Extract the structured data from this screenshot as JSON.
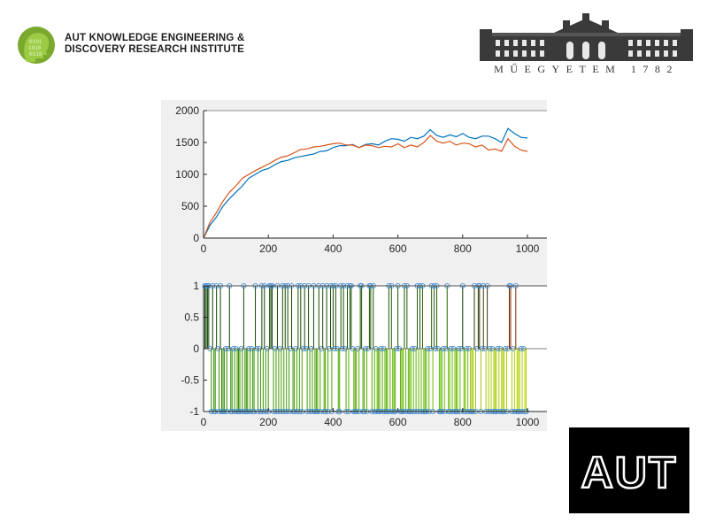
{
  "header": {
    "institute_line1": "AUT KNOWLEDGE ENGINEERING &",
    "institute_line2": "DISCOVERY RESEARCH INSTITUTE",
    "university_caption": "MŰEGYETEM 1782",
    "institute_logo_icon": "brain-head-icon",
    "university_logo_icon": "building-icon"
  },
  "footer": {
    "aut_logo_text": "AUT"
  },
  "colors": {
    "series_blue": "#0072bd",
    "series_orange": "#d95319",
    "marker_blue": "#4a90d9",
    "stem_dark_green": "#0a3d00",
    "stem_bright_green": "#7ccc00",
    "stem_brown": "#8b2a00"
  },
  "chart_data": [
    {
      "type": "line",
      "xlim": [
        0,
        1000
      ],
      "ylim": [
        0,
        2000
      ],
      "x_ticks": [
        "0",
        "200",
        "400",
        "600",
        "800",
        "1000"
      ],
      "y_ticks": [
        "0",
        "500",
        "1000",
        "1500",
        "2000"
      ],
      "grid": false,
      "series": [
        {
          "color": "#0072bd",
          "points": [
            [
              0,
              0
            ],
            [
              20,
              200
            ],
            [
              40,
              330
            ],
            [
              60,
              500
            ],
            [
              80,
              620
            ],
            [
              100,
              720
            ],
            [
              120,
              820
            ],
            [
              140,
              940
            ],
            [
              160,
              1000
            ],
            [
              180,
              1060
            ],
            [
              200,
              1090
            ],
            [
              220,
              1150
            ],
            [
              240,
              1200
            ],
            [
              260,
              1220
            ],
            [
              280,
              1260
            ],
            [
              300,
              1280
            ],
            [
              320,
              1300
            ],
            [
              340,
              1320
            ],
            [
              360,
              1360
            ],
            [
              380,
              1370
            ],
            [
              400,
              1420
            ],
            [
              420,
              1450
            ],
            [
              440,
              1450
            ],
            [
              460,
              1470
            ],
            [
              480,
              1420
            ],
            [
              500,
              1470
            ],
            [
              520,
              1480
            ],
            [
              540,
              1460
            ],
            [
              560,
              1520
            ],
            [
              580,
              1560
            ],
            [
              600,
              1550
            ],
            [
              620,
              1520
            ],
            [
              640,
              1580
            ],
            [
              660,
              1560
            ],
            [
              680,
              1600
            ],
            [
              700,
              1700
            ],
            [
              720,
              1610
            ],
            [
              740,
              1580
            ],
            [
              760,
              1620
            ],
            [
              780,
              1590
            ],
            [
              800,
              1640
            ],
            [
              820,
              1580
            ],
            [
              840,
              1560
            ],
            [
              860,
              1600
            ],
            [
              880,
              1600
            ],
            [
              900,
              1560
            ],
            [
              920,
              1500
            ],
            [
              940,
              1720
            ],
            [
              960,
              1640
            ],
            [
              980,
              1580
            ],
            [
              1000,
              1570
            ]
          ]
        },
        {
          "color": "#d95319",
          "points": [
            [
              0,
              0
            ],
            [
              20,
              250
            ],
            [
              40,
              400
            ],
            [
              60,
              580
            ],
            [
              80,
              720
            ],
            [
              100,
              820
            ],
            [
              120,
              940
            ],
            [
              140,
              1000
            ],
            [
              160,
              1060
            ],
            [
              180,
              1110
            ],
            [
              200,
              1160
            ],
            [
              220,
              1220
            ],
            [
              240,
              1270
            ],
            [
              260,
              1290
            ],
            [
              280,
              1340
            ],
            [
              300,
              1390
            ],
            [
              320,
              1400
            ],
            [
              340,
              1430
            ],
            [
              360,
              1440
            ],
            [
              380,
              1460
            ],
            [
              400,
              1480
            ],
            [
              420,
              1490
            ],
            [
              440,
              1460
            ],
            [
              460,
              1460
            ],
            [
              480,
              1420
            ],
            [
              500,
              1460
            ],
            [
              520,
              1450
            ],
            [
              540,
              1420
            ],
            [
              560,
              1440
            ],
            [
              580,
              1430
            ],
            [
              600,
              1480
            ],
            [
              620,
              1420
            ],
            [
              640,
              1460
            ],
            [
              660,
              1430
            ],
            [
              680,
              1500
            ],
            [
              700,
              1610
            ],
            [
              720,
              1520
            ],
            [
              740,
              1490
            ],
            [
              760,
              1520
            ],
            [
              780,
              1460
            ],
            [
              800,
              1490
            ],
            [
              820,
              1480
            ],
            [
              840,
              1430
            ],
            [
              860,
              1460
            ],
            [
              880,
              1380
            ],
            [
              900,
              1400
            ],
            [
              920,
              1360
            ],
            [
              940,
              1560
            ],
            [
              960,
              1440
            ],
            [
              980,
              1380
            ],
            [
              1000,
              1360
            ]
          ]
        }
      ]
    },
    {
      "type": "stem",
      "xlim": [
        0,
        1000
      ],
      "ylim": [
        -1,
        1
      ],
      "x_ticks": [
        "0",
        "200",
        "400",
        "600",
        "800",
        "1000"
      ],
      "y_ticks": [
        "-1",
        "-0.5",
        "0",
        "0.5",
        "1"
      ],
      "grid": false,
      "positive_x": [
        4,
        8,
        12,
        16,
        22,
        28,
        34,
        40,
        46,
        52,
        62,
        70,
        80,
        90,
        98,
        106,
        114,
        124,
        134,
        146,
        154,
        160,
        170,
        180,
        188,
        198,
        204,
        208,
        212,
        218,
        228,
        234,
        244,
        252,
        260,
        266,
        272,
        278,
        286,
        292,
        300,
        306,
        312,
        318,
        324,
        330,
        340,
        350,
        356,
        362,
        368,
        374,
        380,
        386,
        392,
        400,
        408,
        414,
        424,
        432,
        438,
        444,
        452,
        456,
        462,
        470,
        478,
        484,
        488,
        498,
        506,
        512,
        516,
        524,
        530,
        538,
        546,
        554,
        562,
        572,
        580,
        586,
        594,
        600,
        606,
        614,
        620,
        628,
        634,
        642,
        650,
        660,
        668,
        676,
        686,
        694,
        704,
        712,
        720,
        726,
        738,
        746,
        752,
        762,
        786,
        800,
        830,
        836,
        842,
        848,
        852,
        858,
        864,
        870,
        876,
        930,
        934,
        938,
        944,
        948,
        954,
        958,
        964
      ]
    }
  ]
}
